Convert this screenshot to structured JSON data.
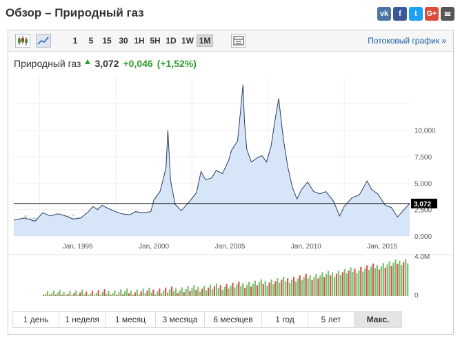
{
  "header": {
    "title": "Обзор – Природный газ"
  },
  "social": [
    {
      "icon": "vk-icon",
      "label": "vk",
      "color": "#4c75a3"
    },
    {
      "icon": "facebook-icon",
      "label": "f",
      "color": "#3b5998"
    },
    {
      "icon": "twitter-icon",
      "label": "t",
      "color": "#1da1f2"
    },
    {
      "icon": "google-plus-icon",
      "label": "G+",
      "color": "#dd4b39"
    },
    {
      "icon": "mail-icon",
      "label": "✉",
      "color": "#555555"
    }
  ],
  "toolbar": {
    "intervals": [
      "1",
      "5",
      "15",
      "30",
      "1H",
      "5H",
      "1D",
      "1W",
      "1M"
    ],
    "active_interval": "1M",
    "stream_label": "Потоковый график »"
  },
  "quote": {
    "name": "Природный газ",
    "price": "3,072",
    "change": "+0,046",
    "change_pct": "(+1,52%)"
  },
  "chart_data": {
    "type": "area",
    "x_tick_labels": [
      "Jan, 1995",
      "Jan, 2000",
      "Jan, 2005",
      "Jan, 2010",
      "Jan, 2015"
    ],
    "y_tick_labels": [
      "0,000",
      "2,500",
      "5,000",
      "7,500",
      "10,000"
    ],
    "ylim": [
      0,
      15
    ],
    "current_value_label": "3,072",
    "current_value": 3.072,
    "volume_tick_labels": [
      "4.0M",
      "0"
    ],
    "watermark": "Investing.com",
    "x": [
      1990.8,
      1991.5,
      1992.2,
      1992.7,
      1993.2,
      1993.7,
      1994.2,
      1994.7,
      1995.2,
      1995.7,
      1996.0,
      1996.3,
      1996.6,
      1997.0,
      1997.5,
      1997.9,
      1998.4,
      1998.8,
      1999.3,
      1999.8,
      2000.0,
      2000.4,
      2000.6,
      2000.8,
      2000.92,
      2001.1,
      2001.4,
      2001.8,
      2002.3,
      2002.8,
      2003.1,
      2003.4,
      2003.8,
      2004.1,
      2004.5,
      2004.9,
      2005.1,
      2005.5,
      2005.7,
      2005.85,
      2005.95,
      2006.1,
      2006.4,
      2006.8,
      2007.1,
      2007.4,
      2007.7,
      2007.95,
      2008.2,
      2008.5,
      2008.8,
      2009.1,
      2009.4,
      2009.7,
      2010.1,
      2010.5,
      2010.9,
      2011.3,
      2011.8,
      2012.2,
      2012.5,
      2013.0,
      2013.5,
      2014.0,
      2014.3,
      2014.7,
      2015.2,
      2015.6,
      2016.0,
      2016.5,
      2016.8
    ],
    "values": [
      1.5,
      1.7,
      1.4,
      2.2,
      1.9,
      2.1,
      1.9,
      1.6,
      1.7,
      2.3,
      2.8,
      2.5,
      2.9,
      2.6,
      2.3,
      2.1,
      2.0,
      2.3,
      2.2,
      2.3,
      3.4,
      4.2,
      5.3,
      6.5,
      10.0,
      5.2,
      3.0,
      2.4,
      3.2,
      4.1,
      6.1,
      5.3,
      5.5,
      6.2,
      5.9,
      7.1,
      8.1,
      9.0,
      11.9,
      14.3,
      10.8,
      8.2,
      7.0,
      7.4,
      7.6,
      7.0,
      8.5,
      10.9,
      13.0,
      9.2,
      6.5,
      4.6,
      3.5,
      4.4,
      5.1,
      4.2,
      4.0,
      4.2,
      3.3,
      1.9,
      2.8,
      3.6,
      3.9,
      5.2,
      4.4,
      4.0,
      2.9,
      2.7,
      1.8,
      2.6,
      3.07
    ]
  },
  "ranges": {
    "items": [
      "1 день",
      "1 неделя",
      "1 месяц",
      "3 месяца",
      "6 месяцев",
      "1 год",
      "5 лет",
      "Макс."
    ],
    "active": "Макс."
  }
}
